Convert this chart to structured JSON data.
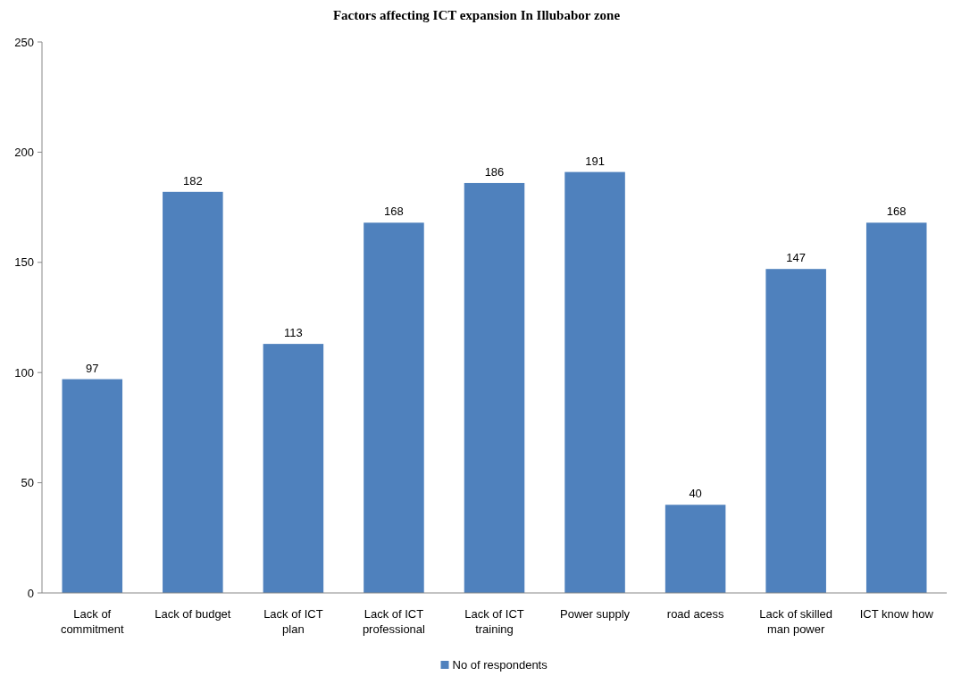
{
  "chart_data": {
    "type": "bar",
    "title": "Factors affecting ICT expansion In Illubabor zone",
    "categories": [
      "Lack of commitment",
      "Lack of budget",
      "Lack of ICT plan",
      "Lack of ICT professional",
      "Lack of ICT training",
      "Power supply",
      "road acess",
      "Lack of skilled man power",
      "ICT know how"
    ],
    "series": [
      {
        "name": "No of respondents",
        "color": "#4f81bd",
        "values": [
          97,
          182,
          113,
          168,
          186,
          191,
          40,
          147,
          168
        ]
      }
    ],
    "ylim": [
      0,
      250
    ],
    "yticks": [
      0,
      50,
      100,
      150,
      200,
      250
    ],
    "data_labels": true,
    "legend": "bottom",
    "grid": false
  }
}
